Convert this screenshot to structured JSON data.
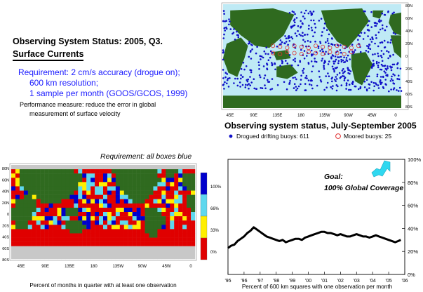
{
  "left_text": {
    "title": "Observing System Status:  2005, Q3.",
    "subtitle": "Surface Currents",
    "requirement_lines": [
      "Requirement: 2 cm/s accuracy (drogue on);",
      "600 km resolution;",
      "1 sample per month (GOOS/GCOS, 1999)"
    ],
    "performance_lines": [
      "Performance measure: reduce the error in global",
      "measurement of surface velocity"
    ]
  },
  "colors": {
    "ocean": "#bfeaf5",
    "land": "#2f6a1f",
    "drifter": "#1010c8",
    "moored": "#e03030",
    "line": "#000000",
    "arrow": "#2fd8f0",
    "requirement_blue": "#1a1aff",
    "box_red": "#e00000",
    "box_yellow": "#ffee00",
    "box_cyan": "#5fd8ee",
    "box_blue": "#0000cc",
    "no_ocean": "#c8c8c8"
  },
  "chart_data": [
    {
      "type": "scatter",
      "title": "Observing system status, July-September 2005",
      "x_tick_labels": [
        "45E",
        "90E",
        "135E",
        "180",
        "135W",
        "90W",
        "45W",
        "0"
      ],
      "y_tick_labels": [
        "80N",
        "60N",
        "40N",
        "20N",
        "0",
        "20S",
        "40S",
        "60S",
        "80S"
      ],
      "legend": [
        {
          "marker": "filled-circle",
          "label": "Drogued drifting buoys: 611",
          "count": 611
        },
        {
          "marker": "open-circle",
          "label": "Moored buoys: 25",
          "count": 25
        }
      ]
    },
    {
      "type": "heatmap",
      "title": "Requirement: all boxes blue",
      "xlabel": "Percent of months in quarter with at least one observation",
      "x_tick_labels": [
        "45E",
        "90E",
        "135E",
        "180",
        "135W",
        "90W",
        "45W",
        "0"
      ],
      "y_tick_labels": [
        "80N",
        "60N",
        "40N",
        "20N",
        "0",
        "20S",
        "40S",
        "60S",
        "80S"
      ],
      "colorbar": [
        {
          "label": "100%",
          "color": "#0000cc"
        },
        {
          "label": "66%",
          "color": "#5fd8ee"
        },
        {
          "label": "33%",
          "color": "#ffee00"
        },
        {
          "label": "0%",
          "color": "#e00000"
        }
      ]
    },
    {
      "type": "line",
      "xlabel": "Percent of 600 km squares with one observation per month",
      "annotation_lines": [
        "Goal:",
        "100% Global Coverage"
      ],
      "x_tick_labels": [
        "'95",
        "'96",
        "'97",
        "'98",
        "'99",
        "'00",
        "'01",
        "'02",
        "'03",
        "'04",
        "'05",
        "'06"
      ],
      "y_tick_labels": [
        "0%",
        "20%",
        "40%",
        "60%",
        "80%",
        "100%"
      ],
      "xlim": [
        1995,
        2006
      ],
      "ylim": [
        0,
        100
      ],
      "series": [
        {
          "x": [
            1995.0,
            1995.2,
            1995.4,
            1995.6,
            1995.8,
            1996.0,
            1996.2,
            1996.4,
            1996.6,
            1996.8,
            1997.0,
            1997.2,
            1997.4,
            1997.6,
            1997.8,
            1998.0,
            1998.2,
            1998.4,
            1998.6,
            1998.8,
            1999.0,
            1999.2,
            1999.4,
            1999.6,
            1999.8,
            2000.0,
            2000.2,
            2000.4,
            2000.6,
            2000.8,
            2001.0,
            2001.2,
            2001.4,
            2001.6,
            2001.8,
            2002.0,
            2002.2,
            2002.4,
            2002.6,
            2002.8,
            2003.0,
            2003.2,
            2003.4,
            2003.6,
            2003.8,
            2004.0,
            2004.2,
            2004.4,
            2004.6,
            2004.8,
            2005.0,
            2005.2,
            2005.4,
            2005.6,
            2005.75
          ],
          "y": [
            23,
            25,
            26,
            29,
            31,
            33,
            36,
            38,
            41,
            39,
            37,
            35,
            33,
            32,
            31,
            30,
            29,
            30,
            28,
            29,
            30,
            31,
            31,
            30,
            32,
            33,
            34,
            35,
            36,
            37,
            37,
            36,
            36,
            35,
            34,
            35,
            34,
            33,
            33,
            34,
            35,
            34,
            33,
            33,
            32,
            33,
            34,
            33,
            32,
            31,
            30,
            29,
            28,
            29,
            30
          ]
        }
      ]
    }
  ]
}
